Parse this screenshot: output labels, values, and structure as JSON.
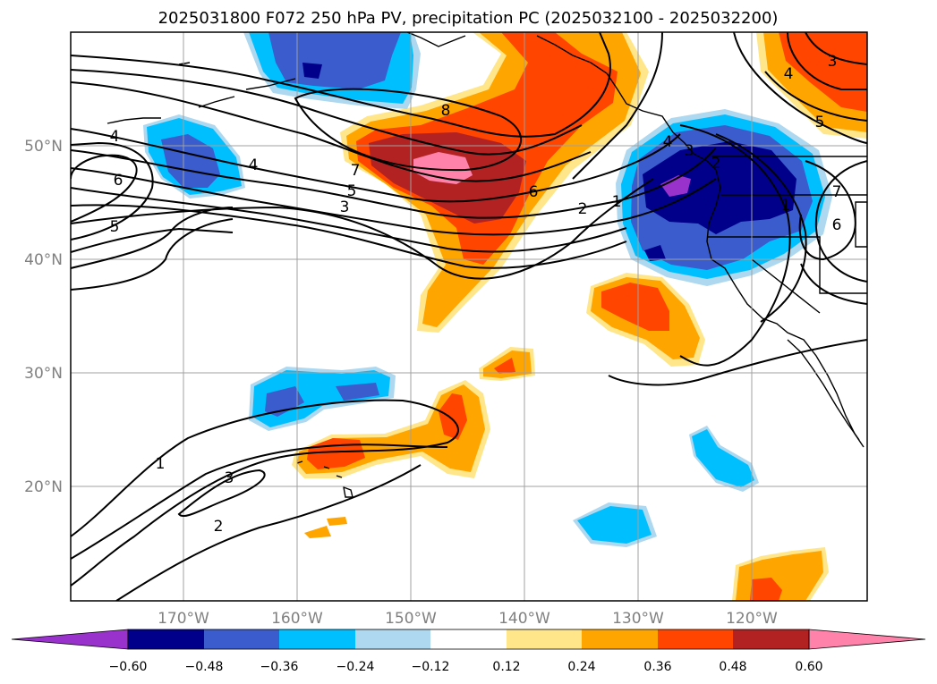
{
  "title": "2025031800 F072 250 hPa PV, precipitation PC (2025032100 - 2025032200)",
  "lat_labels": [
    "50°N",
    "40°N",
    "30°N",
    "20°N"
  ],
  "lon_labels": [
    "170°W",
    "160°W",
    "150°W",
    "140°W",
    "130°W",
    "120°W"
  ],
  "colorbar": {
    "ticks": [
      "−0.60",
      "−0.48",
      "−0.36",
      "−0.24",
      "−0.12",
      "0.12",
      "0.24",
      "0.36",
      "0.48",
      "0.60"
    ],
    "colors": [
      "#9932cc",
      "#00008b",
      "#3a5ccc",
      "#00bfff",
      "#add8f0",
      "#ffffff",
      "#ffe68a",
      "#ffa500",
      "#ff4500",
      "#b22222",
      "#ff82ab"
    ]
  },
  "contour_labels": [
    "8",
    "7",
    "6",
    "5",
    "4",
    "3",
    "2",
    "1",
    "4",
    "6",
    "5",
    "4",
    "3",
    "7",
    "6",
    "2",
    "1",
    "5",
    "4",
    "3",
    "1",
    "3",
    "2"
  ]
}
